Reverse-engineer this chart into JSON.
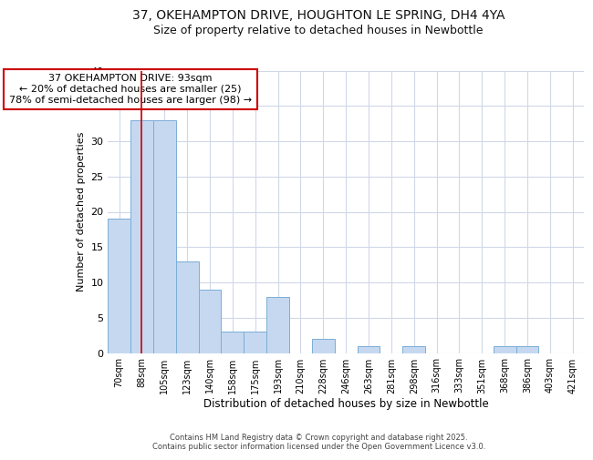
{
  "title_line1": "37, OKEHAMPTON DRIVE, HOUGHTON LE SPRING, DH4 4YA",
  "title_line2": "Size of property relative to detached houses in Newbottle",
  "xlabel": "Distribution of detached houses by size in Newbottle",
  "ylabel": "Number of detached properties",
  "categories": [
    "70sqm",
    "88sqm",
    "105sqm",
    "123sqm",
    "140sqm",
    "158sqm",
    "175sqm",
    "193sqm",
    "210sqm",
    "228sqm",
    "246sqm",
    "263sqm",
    "281sqm",
    "298sqm",
    "316sqm",
    "333sqm",
    "351sqm",
    "368sqm",
    "386sqm",
    "403sqm",
    "421sqm"
  ],
  "values": [
    19,
    33,
    33,
    13,
    9,
    3,
    3,
    8,
    0,
    2,
    0,
    1,
    0,
    1,
    0,
    0,
    0,
    1,
    1,
    0,
    0
  ],
  "bar_color": "#c5d8f0",
  "bar_edge_color": "#7aaed6",
  "red_line_x": 1.0,
  "annotation_text": "37 OKEHAMPTON DRIVE: 93sqm\n← 20% of detached houses are smaller (25)\n78% of semi-detached houses are larger (98) →",
  "annotation_box_color": "#ffffff",
  "annotation_box_edge": "#cc0000",
  "ylim": [
    0,
    40
  ],
  "yticks": [
    0,
    5,
    10,
    15,
    20,
    25,
    30,
    35,
    40
  ],
  "bg_color": "#ffffff",
  "plot_bg_color": "#ffffff",
  "grid_color": "#d0d8e8",
  "footer_line1": "Contains HM Land Registry data © Crown copyright and database right 2025.",
  "footer_line2": "Contains public sector information licensed under the Open Government Licence v3.0.",
  "title_fontsize": 10,
  "subtitle_fontsize": 9,
  "ann_fontsize": 8
}
